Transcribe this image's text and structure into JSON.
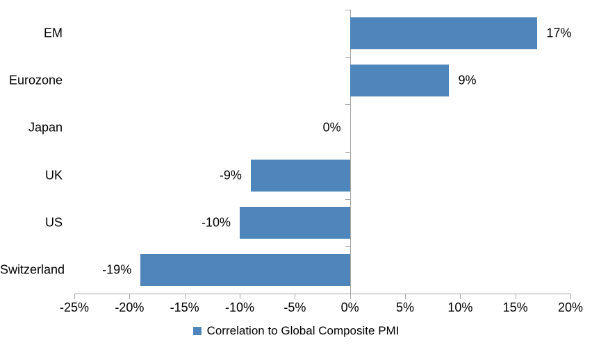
{
  "chart_data": {
    "type": "bar",
    "orientation": "horizontal",
    "title": "",
    "xlabel": "",
    "ylabel": "",
    "categories": [
      "EM",
      "Eurozone",
      "Japan",
      "UK",
      "US",
      "Switzerland"
    ],
    "series": [
      {
        "name": "Correlation to Global Composite PMI",
        "values": [
          17,
          9,
          0,
          -9,
          -10,
          -19
        ],
        "data_labels": [
          "17%",
          "9%",
          "0%",
          "-9%",
          "-10%",
          "-19%"
        ]
      }
    ],
    "xlim": [
      -25,
      20
    ],
    "x_ticks": [
      -25,
      -20,
      -15,
      -10,
      -5,
      0,
      5,
      10,
      15,
      20
    ],
    "x_tick_labels": [
      "-25%",
      "-20%",
      "-15%",
      "-10%",
      "-5%",
      "0%",
      "5%",
      "10%",
      "15%",
      "20%"
    ],
    "grid": false,
    "legend": {
      "position": "bottom",
      "entries": [
        "Correlation to Global Composite PMI"
      ]
    },
    "colors": {
      "bar": "#4e86bc",
      "axis": "#a6a6a6",
      "text": "#000000",
      "background": "#ffffff"
    }
  }
}
